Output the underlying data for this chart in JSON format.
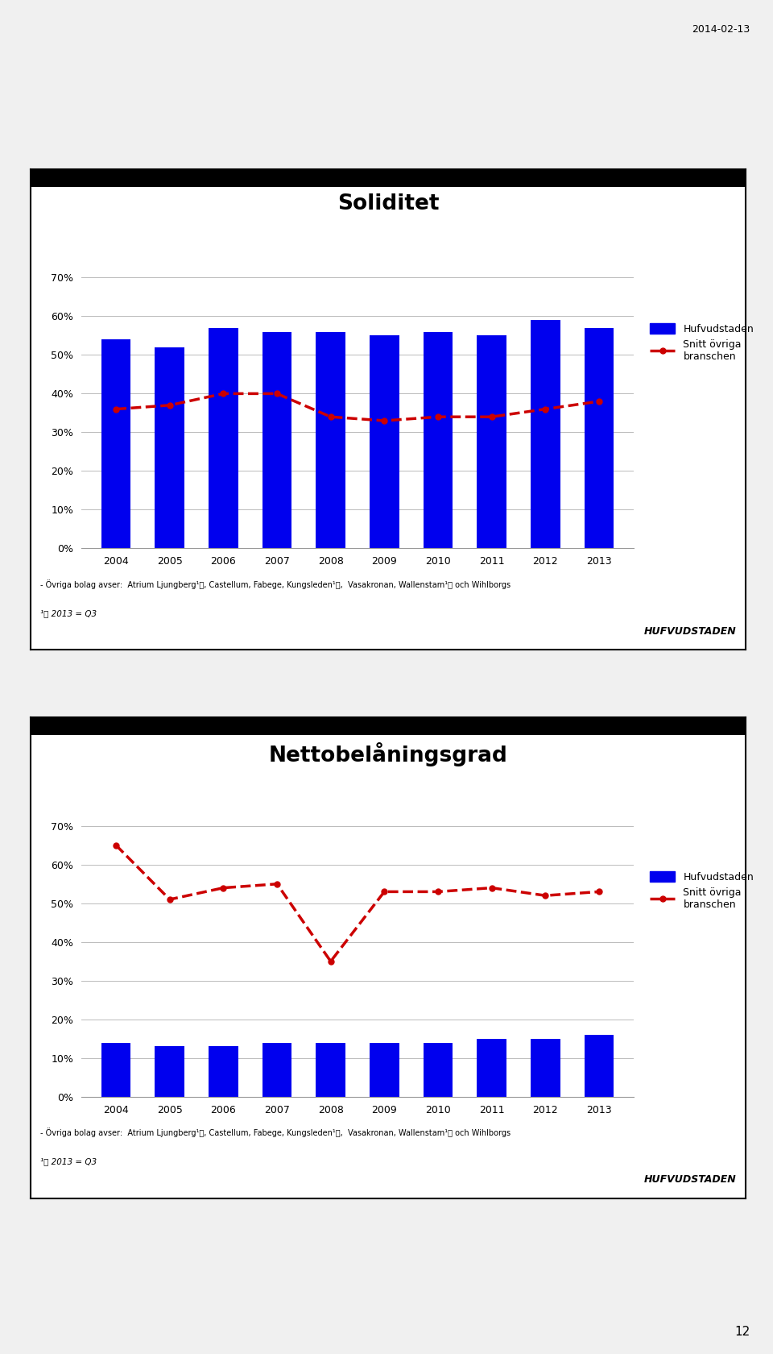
{
  "chart1": {
    "title": "Soliditet",
    "years": [
      2004,
      2005,
      2006,
      2007,
      2008,
      2009,
      2010,
      2011,
      2012,
      2013
    ],
    "hufvudstaden": [
      54,
      52,
      57,
      56,
      56,
      55,
      56,
      55,
      59,
      57
    ],
    "snitt": [
      36,
      37,
      40,
      40,
      34,
      33,
      34,
      34,
      36,
      38
    ],
    "ylim": [
      0,
      70
    ],
    "yticks": [
      0,
      10,
      20,
      30,
      40,
      50,
      60,
      70
    ],
    "ytick_labels": [
      "0%",
      "10%",
      "20%",
      "30%",
      "40%",
      "50%",
      "60%",
      "70%"
    ],
    "bar_color": "#0000EE",
    "line_color": "#CC0000",
    "legend_hufvudstaden": "Hufvudstaden",
    "legend_snitt": "Snitt övriga\nbranschen",
    "footnote1": "- Övriga bolag avser:  Atrium Ljungberg¹⧸, Castellum, Fabege, Kungsleden¹⧸,  Vasakronan, Wallenstam¹⧸ och Wihlborgs",
    "footnote2": "¹⧸ 2013 = Q3",
    "watermark": "HUFVUDSTADEN"
  },
  "chart2": {
    "title": "Nettobelåningsgrad",
    "years": [
      2004,
      2005,
      2006,
      2007,
      2008,
      2009,
      2010,
      2011,
      2012,
      2013
    ],
    "hufvudstaden": [
      14,
      13,
      13,
      14,
      14,
      14,
      14,
      15,
      15,
      16
    ],
    "snitt": [
      65,
      51,
      54,
      55,
      35,
      53,
      53,
      54,
      52,
      53
    ],
    "ylim": [
      0,
      70
    ],
    "yticks": [
      0,
      10,
      20,
      30,
      40,
      50,
      60,
      70
    ],
    "ytick_labels": [
      "0%",
      "10%",
      "20%",
      "30%",
      "40%",
      "50%",
      "60%",
      "70%"
    ],
    "bar_color": "#0000EE",
    "line_color": "#CC0000",
    "legend_hufvudstaden": "Hufvudstaden",
    "legend_snitt": "Snitt övriga\nbranschen",
    "footnote1": "- Övriga bolag avser:  Atrium Ljungberg¹⧸, Castellum, Fabege, Kungsleden¹⧸,  Vasakronan, Wallenstam¹⧸ och Wihlborgs",
    "footnote2": "¹⧸ 2013 = Q3",
    "watermark": "HUFVUDSTADEN"
  },
  "page_date": "2014-02-13",
  "page_number": "12",
  "bg_color": "#F0F0F0",
  "panel_bg": "#FFFFFF",
  "border_color": "#000000",
  "header_bar_color": "#000000"
}
